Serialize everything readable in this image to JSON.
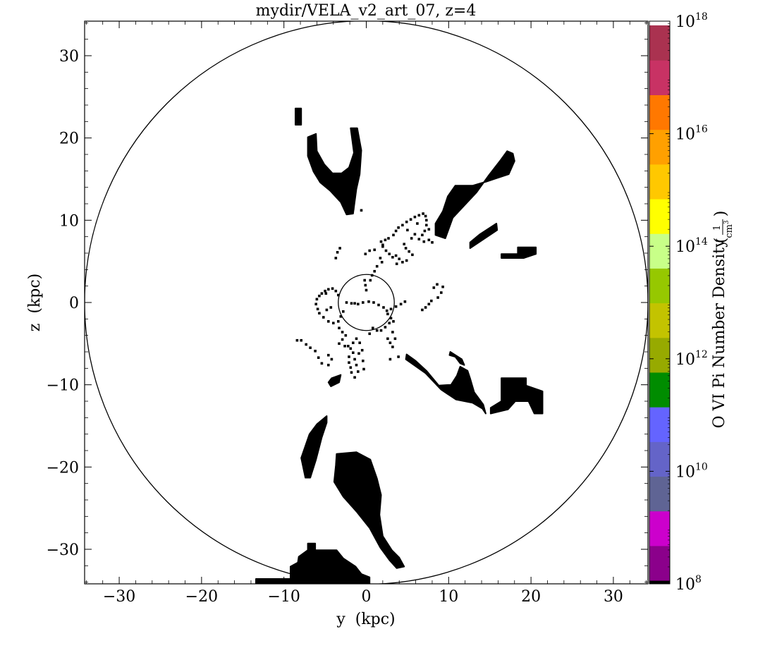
{
  "chart_data": {
    "type": "heatmap",
    "title": "mydir/VELA_v2_art_07, z=4",
    "xlabel": "y  (kpc)",
    "ylabel": "z  (kpc)",
    "xlim": [
      -34.2,
      34.2
    ],
    "ylim": [
      -34.2,
      34.2
    ],
    "x_ticks": [
      -30,
      -20,
      -10,
      0,
      10,
      20,
      30
    ],
    "y_ticks": [
      30,
      20,
      10,
      0,
      -10,
      -20,
      -30
    ],
    "x_tick_labels": [
      "−30",
      "−20",
      "−10",
      "0",
      "10",
      "20",
      "30"
    ],
    "y_tick_labels": [
      "30",
      "20",
      "10",
      "0",
      "−10",
      "−20",
      "−30"
    ],
    "circles": [
      {
        "center": [
          0,
          0
        ],
        "radius": 34.2
      },
      {
        "center": [
          0,
          0
        ],
        "radius": 3.4
      }
    ],
    "fill_color": "#000000",
    "blobs": [
      {
        "name": "upper-left-small",
        "points": [
          [
            -8.6,
            23.6
          ],
          [
            -7.9,
            23.6
          ],
          [
            -7.9,
            21.6
          ],
          [
            -8.6,
            21.6
          ]
        ]
      },
      {
        "name": "upper-left-filament",
        "points": [
          [
            -7.1,
            20.1
          ],
          [
            -6.1,
            20.5
          ],
          [
            -6.0,
            18.4
          ],
          [
            -5.1,
            16.8
          ],
          [
            -4.1,
            15.7
          ],
          [
            -3.0,
            15.7
          ],
          [
            -2.1,
            16.4
          ],
          [
            -1.5,
            18.2
          ],
          [
            -1.9,
            21.2
          ],
          [
            -1.1,
            21.2
          ],
          [
            -0.6,
            18.5
          ],
          [
            -0.8,
            15.6
          ],
          [
            -1.2,
            13.8
          ],
          [
            -1.6,
            10.8
          ],
          [
            -2.4,
            10.7
          ],
          [
            -3.1,
            12.2
          ],
          [
            -4.4,
            13.6
          ],
          [
            -5.6,
            14.6
          ],
          [
            -6.4,
            15.9
          ],
          [
            -7.1,
            17.8
          ]
        ]
      },
      {
        "name": "upper-right-filament",
        "points": [
          [
            10.5,
            10.3
          ],
          [
            13.4,
            13.4
          ],
          [
            14.9,
            15.5
          ],
          [
            16.3,
            17.3
          ],
          [
            17.1,
            18.4
          ],
          [
            17.8,
            18.1
          ],
          [
            18.0,
            17.2
          ],
          [
            17.3,
            15.6
          ],
          [
            14.6,
            14.7
          ],
          [
            12.9,
            14.2
          ],
          [
            10.8,
            14.2
          ],
          [
            9.9,
            12.9
          ],
          [
            9.3,
            11.1
          ],
          [
            8.4,
            9.6
          ],
          [
            8.4,
            8.2
          ],
          [
            9.6,
            7.8
          ]
        ]
      },
      {
        "name": "right-small-1",
        "points": [
          [
            12.6,
            6.6
          ],
          [
            15.9,
            8.8
          ],
          [
            15.8,
            9.6
          ],
          [
            13.8,
            8.3
          ],
          [
            12.6,
            7.3
          ]
        ]
      },
      {
        "name": "right-small-2",
        "points": [
          [
            16.4,
            5.9
          ],
          [
            18.4,
            5.9
          ],
          [
            18.4,
            6.7
          ],
          [
            20.6,
            6.7
          ],
          [
            20.6,
            5.9
          ],
          [
            19.1,
            5.4
          ],
          [
            16.4,
            5.4
          ]
        ]
      },
      {
        "name": "lower-right-filament",
        "points": [
          [
            4.8,
            -6.9
          ],
          [
            7.2,
            -8.6
          ],
          [
            9.1,
            -10.6
          ],
          [
            10.9,
            -11.8
          ],
          [
            12.9,
            -12.2
          ],
          [
            14.1,
            -12.9
          ],
          [
            14.5,
            -13.5
          ],
          [
            14.2,
            -12.4
          ],
          [
            13.1,
            -10.9
          ],
          [
            12.6,
            -9.2
          ],
          [
            12.3,
            -8.3
          ],
          [
            11.4,
            -7.8
          ],
          [
            11.0,
            -8.9
          ],
          [
            10.3,
            -10.0
          ],
          [
            8.8,
            -10.1
          ],
          [
            7.3,
            -8.3
          ],
          [
            6.0,
            -7.1
          ],
          [
            4.9,
            -6.3
          ]
        ]
      },
      {
        "name": "lower-right-small-curl",
        "points": [
          [
            10.2,
            -6.0
          ],
          [
            11.6,
            -6.9
          ],
          [
            11.9,
            -7.6
          ],
          [
            11.4,
            -7.4
          ],
          [
            10.8,
            -6.6
          ],
          [
            10.1,
            -6.4
          ]
        ]
      },
      {
        "name": "lower-right-blob",
        "points": [
          [
            16.4,
            -9.2
          ],
          [
            19.4,
            -9.2
          ],
          [
            19.4,
            -10.1
          ],
          [
            21.4,
            -10.8
          ],
          [
            21.4,
            -13.5
          ],
          [
            20.4,
            -13.5
          ],
          [
            19.7,
            -12.0
          ],
          [
            18.1,
            -12.0
          ],
          [
            17.2,
            -13.0
          ],
          [
            15.1,
            -13.5
          ],
          [
            15.1,
            -12.8
          ],
          [
            16.4,
            -12.0
          ]
        ]
      },
      {
        "name": "lower-left-filament",
        "points": [
          [
            -6.9,
            -16.0
          ],
          [
            -6.0,
            -14.8
          ],
          [
            -4.8,
            -13.8
          ],
          [
            -4.8,
            -14.6
          ],
          [
            -5.4,
            -16.4
          ],
          [
            -6.1,
            -19.1
          ],
          [
            -6.8,
            -21.3
          ],
          [
            -7.4,
            -21.3
          ],
          [
            -7.9,
            -18.9
          ]
        ]
      },
      {
        "name": "lower-central-filament",
        "points": [
          [
            -3.6,
            -18.4
          ],
          [
            -1.2,
            -18.2
          ],
          [
            0.5,
            -19.1
          ],
          [
            1.3,
            -21.4
          ],
          [
            1.8,
            -23.4
          ],
          [
            1.6,
            -25.8
          ],
          [
            2.0,
            -28.4
          ],
          [
            3.1,
            -30.1
          ],
          [
            4.0,
            -31.0
          ],
          [
            4.6,
            -32.1
          ],
          [
            3.7,
            -32.3
          ],
          [
            2.8,
            -31.3
          ],
          [
            1.7,
            -29.8
          ],
          [
            0.4,
            -27.4
          ],
          [
            -1.2,
            -25.4
          ],
          [
            -2.8,
            -23.6
          ],
          [
            -3.9,
            -21.8
          ],
          [
            -3.7,
            -19.8
          ]
        ]
      },
      {
        "name": "bottom-blob",
        "points": [
          [
            -13.4,
            -34.2
          ],
          [
            -13.4,
            -33.6
          ],
          [
            -9.2,
            -33.6
          ],
          [
            -9.2,
            -32.1
          ],
          [
            -8.3,
            -31.6
          ],
          [
            -8.2,
            -30.9
          ],
          [
            -7.1,
            -30.1
          ],
          [
            -7.1,
            -29.3
          ],
          [
            -6.2,
            -29.3
          ],
          [
            -6.2,
            -30.1
          ],
          [
            -3.6,
            -30.1
          ],
          [
            -2.8,
            -31.1
          ],
          [
            -1.3,
            -32.1
          ],
          [
            -0.6,
            -33.0
          ],
          [
            0.4,
            -33.4
          ],
          [
            0.4,
            -34.2
          ]
        ]
      },
      {
        "name": "lower-left-small",
        "points": [
          [
            -4.2,
            -9.2
          ],
          [
            -3.1,
            -8.8
          ],
          [
            -3.3,
            -9.7
          ],
          [
            -4.3,
            -10.2
          ],
          [
            -4.6,
            -9.7
          ]
        ]
      }
    ],
    "chain_points": [
      [
        -8.4,
        -4.6
      ],
      [
        -7.9,
        -4.6
      ],
      [
        -7.3,
        -5.1
      ],
      [
        -6.8,
        -5.5
      ],
      [
        -6.2,
        -5.9
      ],
      [
        -5.8,
        -6.7
      ],
      [
        -5.4,
        -7.4
      ],
      [
        -4.6,
        -7.6
      ],
      [
        -4.2,
        -6.9
      ],
      [
        -4.6,
        -6.4
      ],
      [
        -3.3,
        -3.1
      ],
      [
        -2.9,
        -3.6
      ],
      [
        -2.5,
        -4.0
      ],
      [
        -2.9,
        -4.5
      ],
      [
        -3.3,
        -5.0
      ],
      [
        -2.6,
        -5.3
      ],
      [
        -2.2,
        -5.3
      ],
      [
        -1.6,
        -4.9
      ],
      [
        -1.2,
        -4.4
      ],
      [
        -0.8,
        -4.9
      ],
      [
        -1.6,
        -6.1
      ],
      [
        -1.4,
        -6.9
      ],
      [
        -1.2,
        -7.6
      ],
      [
        -1.0,
        -8.4
      ],
      [
        -1.4,
        -9.1
      ],
      [
        -1.8,
        -8.5
      ],
      [
        -1.9,
        -7.9
      ],
      [
        -2.1,
        -7.3
      ],
      [
        -0.9,
        -6.2
      ],
      [
        -0.5,
        -5.8
      ],
      [
        0.4,
        -3.8
      ],
      [
        0.8,
        -3.1
      ],
      [
        1.3,
        -3.4
      ],
      [
        1.8,
        -3.4
      ],
      [
        2.3,
        -3.0
      ],
      [
        2.8,
        -2.5
      ],
      [
        3.3,
        -2.3
      ],
      [
        2.6,
        -4.4
      ],
      [
        2.9,
        -4.9
      ],
      [
        3.2,
        -5.4
      ],
      [
        -6.1,
        -0.2
      ],
      [
        -6.0,
        0.4
      ],
      [
        -5.7,
        0.8
      ],
      [
        -5.4,
        1.1
      ],
      [
        -5.0,
        1.4
      ],
      [
        -4.6,
        1.6
      ],
      [
        -4.1,
        1.7
      ],
      [
        -3.7,
        1.4
      ],
      [
        -3.4,
        0.9
      ],
      [
        -5.9,
        -0.8
      ],
      [
        -5.7,
        -1.3
      ],
      [
        -5.2,
        -1.8
      ],
      [
        -4.6,
        -2.3
      ],
      [
        -4.0,
        -2.5
      ],
      [
        -3.4,
        -2.3
      ],
      [
        -3.1,
        -1.7
      ],
      [
        -2.8,
        -1.1
      ],
      [
        -4.8,
        -0.9
      ],
      [
        -4.3,
        -0.6
      ],
      [
        -4.9,
        1.1
      ],
      [
        -3.7,
        5.4
      ],
      [
        -3.5,
        6.1
      ],
      [
        -3.2,
        6.6
      ],
      [
        -0.1,
        5.9
      ],
      [
        0.4,
        6.3
      ],
      [
        1.0,
        6.4
      ],
      [
        1.7,
        5.4
      ],
      [
        1.9,
        4.9
      ],
      [
        1.3,
        4.4
      ],
      [
        1.0,
        3.8
      ],
      [
        0.7,
        3.3
      ],
      [
        0.5,
        2.7
      ],
      [
        1.8,
        7.4
      ],
      [
        2.3,
        7.6
      ],
      [
        2.7,
        7.8
      ],
      [
        2.0,
        6.8
      ],
      [
        2.4,
        6.3
      ],
      [
        2.8,
        5.9
      ],
      [
        3.2,
        5.5
      ],
      [
        3.6,
        5.7
      ],
      [
        3.3,
        8.2
      ],
      [
        3.6,
        8.7
      ],
      [
        3.9,
        9.1
      ],
      [
        4.4,
        9.4
      ],
      [
        4.9,
        9.8
      ],
      [
        5.4,
        10.1
      ],
      [
        5.9,
        10.4
      ],
      [
        6.4,
        10.6
      ],
      [
        6.9,
        10.8
      ],
      [
        7.2,
        10.5
      ],
      [
        7.3,
        10.0
      ],
      [
        7.3,
        9.4
      ],
      [
        7.1,
        8.7
      ],
      [
        6.8,
        8.2
      ],
      [
        6.4,
        7.7
      ],
      [
        7.0,
        7.4
      ],
      [
        7.6,
        7.6
      ],
      [
        8.0,
        7.3
      ],
      [
        5.5,
        7.8
      ],
      [
        5.9,
        8.3
      ],
      [
        4.6,
        7.1
      ],
      [
        4.8,
        6.6
      ],
      [
        5.2,
        6.2
      ],
      [
        5.6,
        5.8
      ],
      [
        4.9,
        5.1
      ],
      [
        4.4,
        4.9
      ],
      [
        4.0,
        5.3
      ],
      [
        3.7,
        4.7
      ],
      [
        8.7,
        0.6
      ],
      [
        9.1,
        1.2
      ],
      [
        9.3,
        1.9
      ],
      [
        8.6,
        2.2
      ],
      [
        8.2,
        1.8
      ],
      [
        7.9,
        0.2
      ],
      [
        7.6,
        -0.2
      ],
      [
        7.2,
        -0.6
      ],
      [
        6.8,
        -0.9
      ],
      [
        4.7,
        0.1
      ],
      [
        4.2,
        -0.2
      ],
      [
        3.6,
        -0.5
      ],
      [
        3.0,
        -0.8
      ],
      [
        2.5,
        -1.0
      ],
      [
        2.1,
        -0.6
      ],
      [
        1.5,
        -0.3
      ],
      [
        0.9,
        0.0
      ],
      [
        0.3,
        0.1
      ],
      [
        -0.4,
        0.0
      ],
      [
        -1.0,
        -0.2
      ],
      [
        -1.4,
        -0.1
      ],
      [
        -0.2,
        2.7
      ],
      [
        -0.1,
        2.1
      ],
      [
        0.0,
        1.5
      ],
      [
        -1.8,
        -0.1
      ],
      [
        -2.4,
        0.0
      ],
      [
        2.6,
        -1.4
      ],
      [
        3.0,
        -1.9
      ],
      [
        3.2,
        -3.6
      ],
      [
        3.5,
        -4.4
      ],
      [
        -1.6,
        11.4
      ],
      [
        -0.6,
        11.2
      ],
      [
        2.0,
        7.0
      ],
      [
        5.0,
        8.8
      ],
      [
        6.2,
        9.6
      ],
      [
        7.6,
        8.9
      ],
      [
        -2.1,
        -6.6
      ],
      [
        -1.9,
        -5.6
      ],
      [
        -0.4,
        -7.1
      ],
      [
        -0.3,
        -8.1
      ],
      [
        3.9,
        -6.6
      ],
      [
        2.9,
        -6.9
      ]
    ],
    "colorbar": {
      "label": "O VI Pi Number Density",
      "unit_numerator": "1",
      "unit_denominator": "cm",
      "unit_exponent": "3",
      "scale": "log",
      "range": [
        8,
        18
      ],
      "tick_bases": [
        "10",
        "10",
        "10",
        "10",
        "10",
        "10"
      ],
      "tick_exponents": [
        "18",
        "16",
        "14",
        "12",
        "10",
        "8"
      ],
      "tick_values": [
        18,
        16,
        14,
        12,
        10,
        8
      ],
      "colors": [
        "#000000",
        "#8b008b",
        "#cc00cc",
        "#5f6494",
        "#6464c8",
        "#6464ff",
        "#008c00",
        "#97aa00",
        "#c3c300",
        "#96c800",
        "#c8ff88",
        "#ffff00",
        "#ffc800",
        "#ffa000",
        "#ff7800",
        "#c83264",
        "#aa3250"
      ]
    }
  }
}
